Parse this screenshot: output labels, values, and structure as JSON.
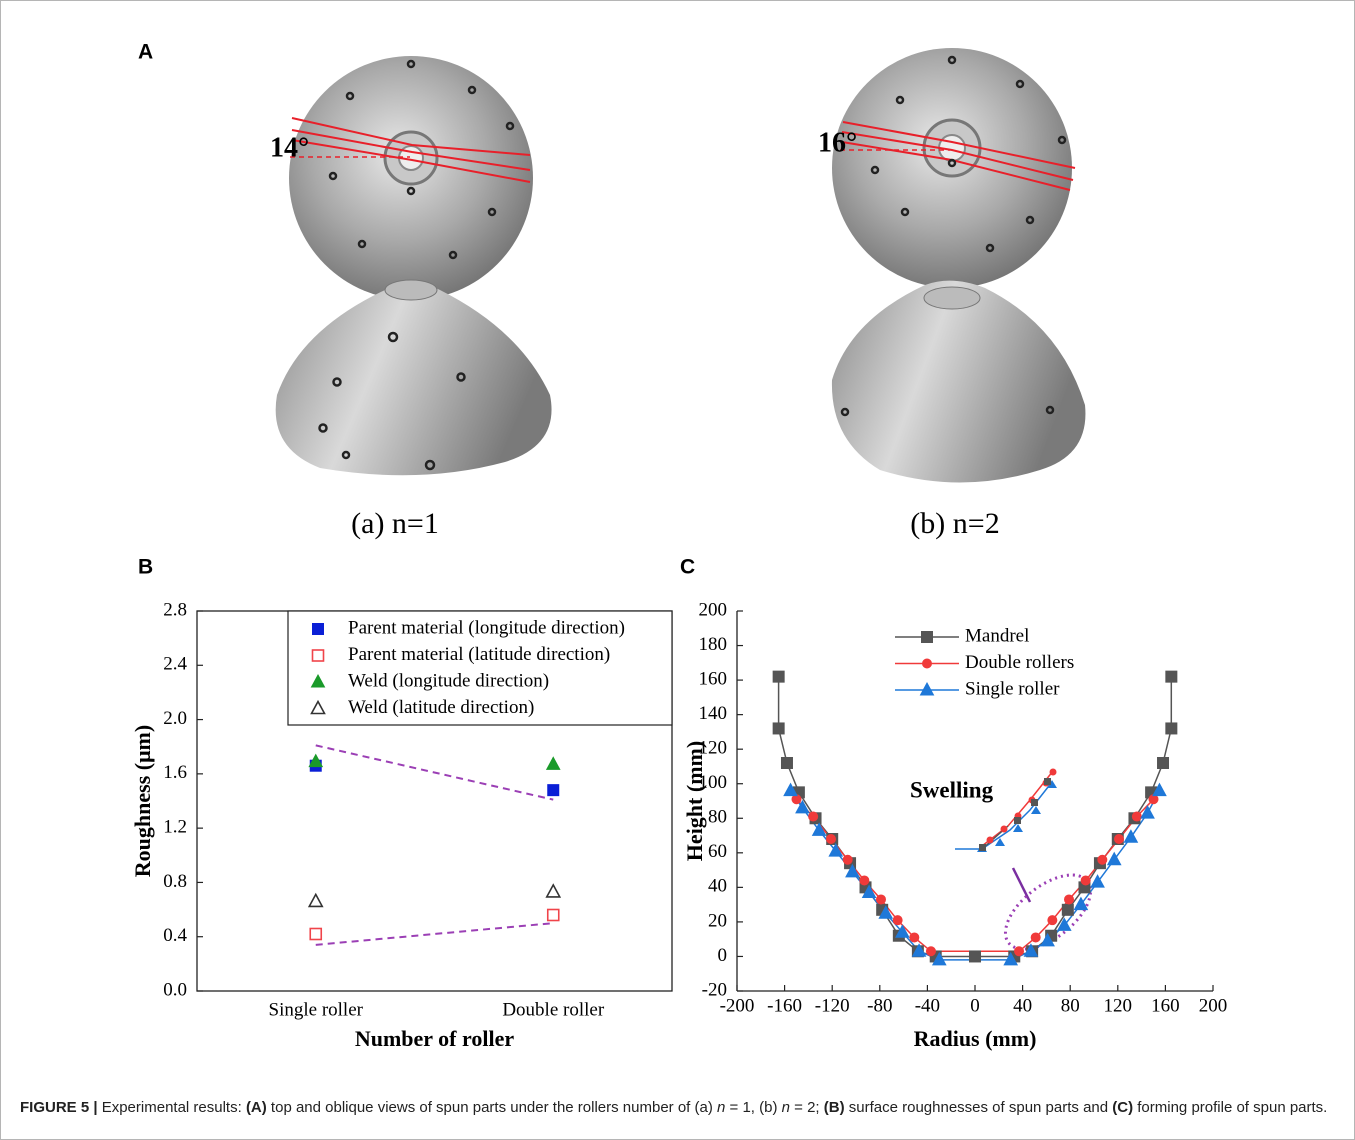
{
  "panels": {
    "a_label": "A",
    "b_label": "B",
    "c_label": "C"
  },
  "photos": [
    {
      "angle_label": "14°",
      "caption": "(a) n=1"
    },
    {
      "angle_label": "16°",
      "caption": "(b) n=2"
    }
  ],
  "chart_data": [
    {
      "type": "scatter",
      "categories": [
        "Single roller",
        "Double roller"
      ],
      "xlabel": "Number of roller",
      "ylabel": "Roughness (μm)",
      "ylim": [
        0,
        2.8
      ],
      "yticks": [
        {
          "value": 0,
          "label": "0.0"
        },
        0.4,
        0.8,
        1.2,
        1.6,
        {
          "value": 2,
          "label": "2.0"
        },
        2.4,
        2.8
      ],
      "legend": "upper right",
      "series": [
        {
          "name": "Parent material (longitude direction)",
          "color": "#0a1fd6",
          "marker": "square",
          "filled": true,
          "values": [
            1.66,
            1.48
          ]
        },
        {
          "name": "Parent material (latitude direction)",
          "color": "#f0444a",
          "marker": "square",
          "filled": false,
          "values": [
            0.42,
            0.56
          ]
        },
        {
          "name": "Weld (longitude direction)",
          "color": "#1a9a2a",
          "marker": "triangle",
          "filled": true,
          "values": [
            1.69,
            1.67
          ]
        },
        {
          "name": "Weld (latitude direction)",
          "color": "#333333",
          "marker": "triangle",
          "filled": false,
          "values": [
            0.66,
            0.73
          ]
        }
      ],
      "trend_lines": {
        "color": "#9b3fb5",
        "lines": [
          [
            1.81,
            1.41
          ],
          [
            0.34,
            0.5
          ]
        ]
      }
    },
    {
      "type": "line",
      "xlabel": "Radius (mm)",
      "ylabel": "Height (mm)",
      "xlim": [
        -200,
        200
      ],
      "xticks": [
        -200,
        -160,
        -120,
        -80,
        -40,
        0,
        40,
        80,
        120,
        160,
        200
      ],
      "ylim": [
        -20,
        200
      ],
      "yticks": [
        -20,
        0,
        20,
        40,
        60,
        80,
        100,
        120,
        140,
        160,
        180,
        200
      ],
      "legend": "upper left",
      "annotation": "Swelling",
      "series": [
        {
          "name": "Mandrel",
          "color": "#555555",
          "marker": "square",
          "x": [
            -165,
            -165,
            -158,
            -148,
            -134,
            -120,
            -105,
            -92,
            -78,
            -64,
            -48,
            -33,
            0,
            33,
            48,
            64,
            78,
            92,
            105,
            120,
            134,
            148,
            158,
            165,
            165
          ],
          "values": [
            162,
            132,
            112,
            95,
            80,
            68,
            54,
            40,
            27,
            12,
            3,
            0,
            0,
            0,
            3,
            12,
            27,
            40,
            54,
            68,
            80,
            95,
            112,
            132,
            162
          ]
        },
        {
          "name": "Double rollers",
          "color": "#f03a3a",
          "marker": "circle",
          "x": [
            -150,
            -136,
            -121,
            -107,
            -93,
            -79,
            -65,
            -51,
            -37,
            37,
            51,
            65,
            79,
            93,
            107,
            121,
            136,
            150
          ],
          "values": [
            91,
            81,
            68,
            56,
            44,
            33,
            21,
            11,
            3,
            3,
            11,
            21,
            33,
            44,
            56,
            68,
            81,
            91
          ]
        },
        {
          "name": "Single roller",
          "color": "#1f78d8",
          "marker": "triangle",
          "x": [
            -155,
            -145,
            -131,
            -117,
            -103,
            -89,
            -75,
            -61,
            -47,
            -30,
            30,
            47,
            61,
            75,
            89,
            103,
            117,
            131,
            145,
            155
          ],
          "values": [
            96,
            86,
            73,
            61,
            49,
            37,
            25,
            14,
            3,
            -2,
            -2,
            3,
            9,
            18,
            30,
            43,
            56,
            69,
            83,
            96
          ]
        }
      ]
    }
  ],
  "caption": [
    {
      "text": "FIGURE 5 |",
      "style": "bold"
    },
    {
      "text": " Experimental results: ",
      "style": "normal"
    },
    {
      "text": "(A)",
      "style": "bold"
    },
    {
      "text": " top and oblique views of spun parts under the rollers number of (a) ",
      "style": "normal"
    },
    {
      "text": "n",
      "style": "italic"
    },
    {
      "text": " = 1, (b) ",
      "style": "normal"
    },
    {
      "text": "n",
      "style": "italic"
    },
    {
      "text": " = 2; ",
      "style": "normal"
    },
    {
      "text": "(B)",
      "style": "bold"
    },
    {
      "text": " surface roughnesses of spun parts and ",
      "style": "normal"
    },
    {
      "text": "(C)",
      "style": "bold"
    },
    {
      "text": " forming profile of spun parts.",
      "style": "normal"
    }
  ]
}
